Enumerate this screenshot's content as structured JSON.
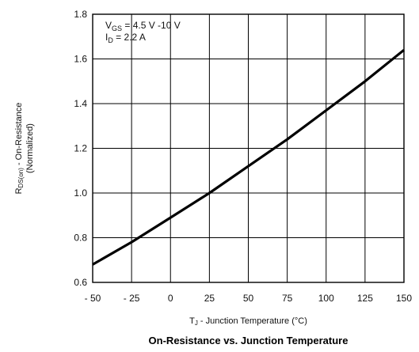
{
  "chart_data": {
    "type": "line",
    "title": "On-Resistance vs. Junction Temperature",
    "xlabel": "T_J - Junction Temperature (°C)",
    "xlabel_main": "T",
    "xlabel_sub": "J",
    "xlabel_rest": " - Junction Temperature (°C)",
    "ylabel_line1": "R",
    "ylabel_sub": "DS(on)",
    "ylabel_rest": " - On-Resistance",
    "ylabel_line2": "(Normalized)",
    "xlim": [
      -50,
      150
    ],
    "ylim": [
      0.6,
      1.8
    ],
    "xticks": [
      -50,
      -25,
      0,
      25,
      50,
      75,
      100,
      125,
      150
    ],
    "xtick_labels": [
      "- 50",
      "- 25",
      "0",
      "25",
      "50",
      "75",
      "100",
      "125",
      "150"
    ],
    "yticks": [
      0.6,
      0.8,
      1.0,
      1.2,
      1.4,
      1.6,
      1.8
    ],
    "ytick_labels": [
      "0.6",
      "0.8",
      "1.0",
      "1.2",
      "1.4",
      "1.6",
      "1.8"
    ],
    "grid": true,
    "annotations": [
      {
        "main": "V",
        "sub": "GS",
        "rest": " = 4.5 V -10 V"
      },
      {
        "main": "I",
        "sub": "D",
        "rest": " = 2.2 A"
      }
    ],
    "series": [
      {
        "x": [
          -50,
          -25,
          0,
          25,
          50,
          75,
          100,
          125,
          150
        ],
        "y": [
          0.68,
          0.78,
          0.89,
          1.0,
          1.12,
          1.24,
          1.37,
          1.5,
          1.64
        ]
      }
    ],
    "line_color": "#000000",
    "grid_color": "#000000"
  }
}
